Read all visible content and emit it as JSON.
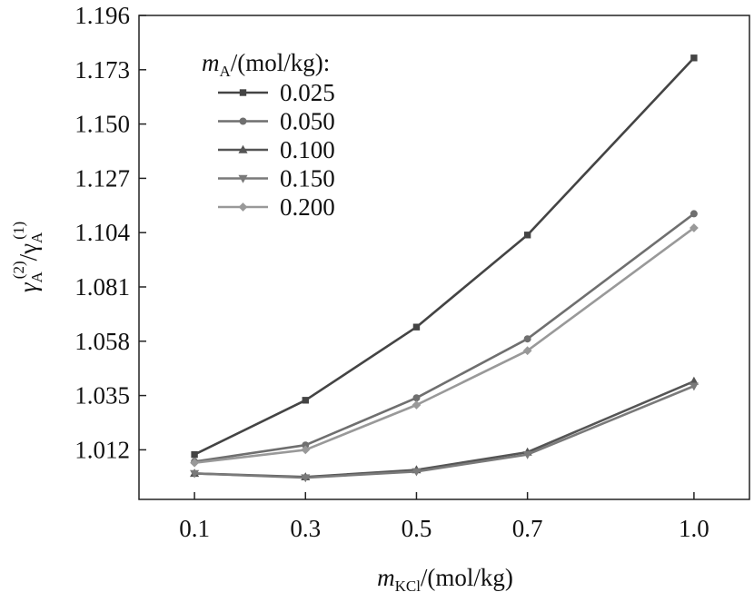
{
  "chart_data": {
    "type": "line",
    "x": [
      0.1,
      0.3,
      0.5,
      0.7,
      1.0
    ],
    "x_tick_labels": [
      "0.1",
      "0.3",
      "0.5",
      "0.7",
      "1.0"
    ],
    "xlim": [
      0.0,
      1.1
    ],
    "ylim": [
      0.991,
      1.196
    ],
    "y_ticks": [
      1.012,
      1.035,
      1.058,
      1.081,
      1.104,
      1.127,
      1.15,
      1.173,
      1.196
    ],
    "y_tick_labels": [
      "1.012",
      "1.035",
      "1.058",
      "1.081",
      "1.104",
      "1.127",
      "1.150",
      "1.173",
      "1.196"
    ],
    "xlabel": {
      "var": "m",
      "sub": "KCl",
      "unit": "/(mol/kg)"
    },
    "ylabel": {
      "var": "γ",
      "sub1": "A",
      "sup1": "(2)",
      "mid": "/γ",
      "sub2": "A",
      "sup2": "(1)"
    },
    "legend": {
      "var": "m",
      "sub": "A",
      "unit": "/(mol/kg):",
      "placement": "top-left"
    },
    "grid": false,
    "series": [
      {
        "name": "0.025",
        "values": [
          1.01,
          1.033,
          1.064,
          1.103,
          1.178
        ],
        "color": "#444444",
        "marker": "square"
      },
      {
        "name": "0.050",
        "values": [
          1.007,
          1.014,
          1.034,
          1.059,
          1.112
        ],
        "color": "#6f6f6f",
        "marker": "circle"
      },
      {
        "name": "0.100",
        "values": [
          1.002,
          1.0005,
          1.0035,
          1.011,
          1.041
        ],
        "color": "#555555",
        "marker": "triangle-up"
      },
      {
        "name": "0.150",
        "values": [
          1.002,
          1.0002,
          1.0028,
          1.01,
          1.039
        ],
        "color": "#7a7a7a",
        "marker": "triangle-down"
      },
      {
        "name": "0.200",
        "values": [
          1.0065,
          1.012,
          1.031,
          1.054,
          1.106
        ],
        "color": "#999999",
        "marker": "diamond"
      }
    ]
  }
}
